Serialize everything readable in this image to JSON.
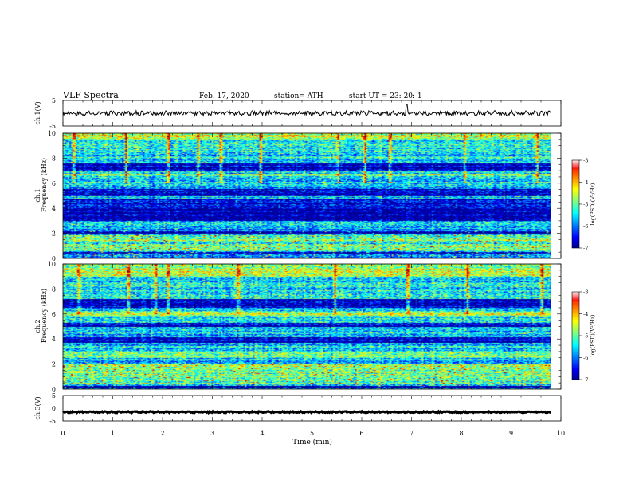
{
  "header": {
    "title": "VLF  Spectra",
    "date": "Feb. 17, 2020",
    "station": "station= ATH",
    "start": "start  UT  =    23: 20: 1"
  },
  "chart_data": [
    {
      "type": "line",
      "name": "ch1-waveform",
      "ylabel": "ch.1(V)",
      "xlim": [
        0,
        10
      ],
      "xmax_data": 9.8,
      "ylim": [
        -5,
        5
      ],
      "yticks": [
        "5",
        "-5"
      ],
      "baseline_v": 0.0,
      "amplitude_v": 0.8,
      "spike": {
        "x": 6.9,
        "v": 3.5
      }
    },
    {
      "type": "heatmap",
      "name": "ch1-spectrogram",
      "ylabel": "ch.1\nFrequency  (kHz)",
      "ylabel_channel": "ch.1",
      "ylabel_quantity": "Frequency  (kHz)",
      "xlim": [
        0,
        10
      ],
      "xmax_data": 9.8,
      "ylim": [
        0,
        10
      ],
      "yticks": [
        "0",
        "2",
        "4",
        "6",
        "8",
        "10"
      ],
      "colorbar": {
        "label": "log(PSD)(V²/Hz)",
        "range": [
          -7,
          -3
        ],
        "ticks": [
          "-3",
          "-4",
          "-5",
          "-6",
          "-7"
        ]
      },
      "dark_bands_khz": [
        [
          0.4,
          0.55
        ],
        [
          2.0,
          2.2
        ],
        [
          3.0,
          4.8
        ],
        [
          5.0,
          5.6
        ],
        [
          7.0,
          7.6
        ]
      ],
      "bright_bands_khz": [
        [
          0.6,
          1.2
        ],
        [
          1.4,
          1.9
        ],
        [
          6.6,
          6.8
        ],
        [
          9.5,
          10.0
        ]
      ],
      "burst_times_min": [
        0.2,
        1.25,
        2.1,
        2.7,
        3.15,
        3.95,
        5.5,
        6.05,
        6.55,
        8.05,
        9.5
      ]
    },
    {
      "type": "heatmap",
      "name": "ch2-spectrogram",
      "ylabel": "ch.2\nFrequency  (kHz)",
      "ylabel_channel": "ch.2",
      "ylabel_quantity": "Frequency  (kHz)",
      "xlim": [
        0,
        10
      ],
      "xmax_data": 9.8,
      "ylim": [
        0,
        10
      ],
      "yticks": [
        "0",
        "2",
        "4",
        "6",
        "8",
        "10"
      ],
      "colorbar": {
        "label": "log(PSD)(V²/Hz)",
        "range": [
          -7,
          -3
        ],
        "ticks": [
          "-3",
          "-4",
          "-5",
          "-6",
          "-7"
        ]
      },
      "dark_bands_khz": [
        [
          0.1,
          0.3
        ],
        [
          3.7,
          4.2
        ],
        [
          5.0,
          5.3
        ],
        [
          6.5,
          7.2
        ]
      ],
      "bright_bands_khz": [
        [
          0.5,
          2.0
        ],
        [
          2.5,
          3.0
        ],
        [
          5.8,
          6.2
        ],
        [
          9.0,
          10.0
        ]
      ],
      "burst_times_min": [
        0.3,
        1.3,
        1.85,
        2.1,
        3.5,
        5.45,
        6.9,
        8.1,
        9.6
      ]
    },
    {
      "type": "line",
      "name": "ch3-waveform",
      "ylabel": "ch.3(V)",
      "xlabel": "Time  (min)",
      "xlim": [
        0,
        10
      ],
      "xmax_data": 9.8,
      "ylim": [
        -5,
        5
      ],
      "yticks": [
        "5",
        "0",
        "-5"
      ],
      "xticks": [
        "0",
        "1",
        "2",
        "3",
        "4",
        "5",
        "6",
        "7",
        "8",
        "9",
        "10"
      ],
      "baseline_v": -1.5,
      "amplitude_v": 0.25
    }
  ]
}
